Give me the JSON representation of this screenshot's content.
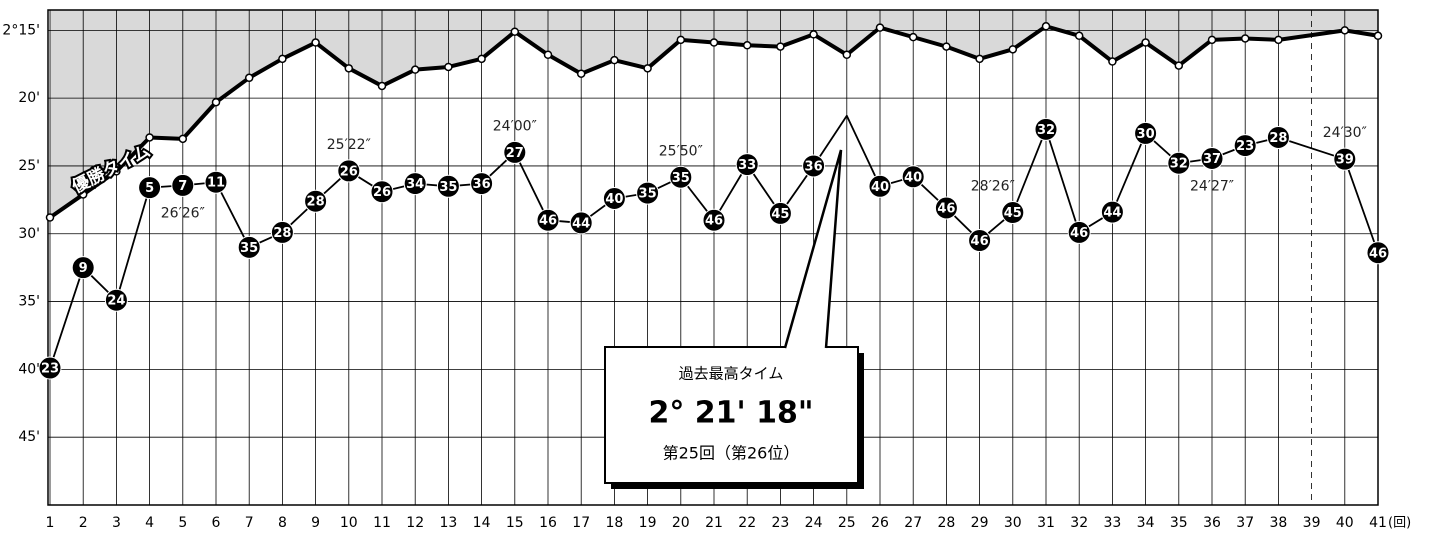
{
  "chart_data": {
    "type": "line",
    "categories": [
      "1",
      "2",
      "3",
      "4",
      "5",
      "6",
      "7",
      "8",
      "9",
      "10",
      "11",
      "12",
      "13",
      "14",
      "15",
      "16",
      "17",
      "18",
      "19",
      "20",
      "21",
      "22",
      "23",
      "24",
      "25",
      "26",
      "27",
      "28",
      "29",
      "30",
      "31",
      "32",
      "33",
      "34",
      "35",
      "36",
      "37",
      "38",
      "39",
      "40",
      "41"
    ],
    "x_unit": "(回)",
    "ylim": [
      50,
      13.5
    ],
    "yticks": [
      {
        "value": 15,
        "label": "2°15'"
      },
      {
        "value": 20,
        "label": "20'"
      },
      {
        "value": 25,
        "label": "25'"
      },
      {
        "value": 30,
        "label": "30'"
      },
      {
        "value": 35,
        "label": "35'"
      },
      {
        "value": 40,
        "label": "40'"
      },
      {
        "value": 45,
        "label": "45'"
      }
    ],
    "grid": true,
    "span_gaps": true,
    "series": [
      {
        "name": "優勝タイム",
        "color": "#000000",
        "area_color": "#d9d9d9",
        "values": [
          28.8,
          27.1,
          25.4,
          22.9,
          23.0,
          20.3,
          18.5,
          17.1,
          15.9,
          17.8,
          19.1,
          17.9,
          17.7,
          17.1,
          15.1,
          16.8,
          18.2,
          17.2,
          17.8,
          15.7,
          15.9,
          16.1,
          16.2,
          15.3,
          16.8,
          14.8,
          15.5,
          16.2,
          17.1,
          16.4,
          14.7,
          15.4,
          17.3,
          15.9,
          17.6,
          15.7,
          15.6,
          15.7,
          null,
          15.0,
          15.4
        ]
      },
      {
        "color": "#000000",
        "values": [
          39.9,
          32.5,
          34.9,
          26.6,
          26.4333,
          26.2,
          31.0,
          29.9,
          27.6,
          25.3667,
          26.9,
          26.3,
          26.5,
          26.3,
          24.0,
          29.0,
          29.2,
          27.4,
          27.0,
          25.8333,
          29.0,
          24.9,
          28.5,
          25.0,
          21.3,
          26.5,
          25.8,
          28.1,
          30.5,
          28.4333,
          22.3,
          29.9,
          28.4,
          22.6,
          24.8,
          24.45,
          23.5,
          22.9,
          null,
          24.5,
          31.4
        ],
        "ranks": [
          23,
          9,
          24,
          5,
          7,
          11,
          35,
          28,
          28,
          26,
          26,
          34,
          35,
          36,
          27,
          46,
          44,
          40,
          35,
          35,
          46,
          33,
          45,
          36,
          null,
          40,
          40,
          46,
          46,
          45,
          32,
          46,
          44,
          30,
          32,
          37,
          23,
          28,
          null,
          39,
          46
        ],
        "value_labels": [
          null,
          null,
          null,
          null,
          "26′26″",
          null,
          null,
          null,
          null,
          "25′22″",
          null,
          null,
          null,
          null,
          "24′00″",
          null,
          null,
          null,
          null,
          "25′50″",
          null,
          null,
          null,
          null,
          null,
          null,
          null,
          null,
          null,
          "28′26″",
          null,
          null,
          null,
          null,
          null,
          "24′27″",
          null,
          null,
          null,
          "24′30″",
          null
        ]
      }
    ],
    "callout": {
      "title": "過去最高タイム",
      "time": "2° 21' 18\"",
      "note": "第25回（第26位）"
    }
  }
}
